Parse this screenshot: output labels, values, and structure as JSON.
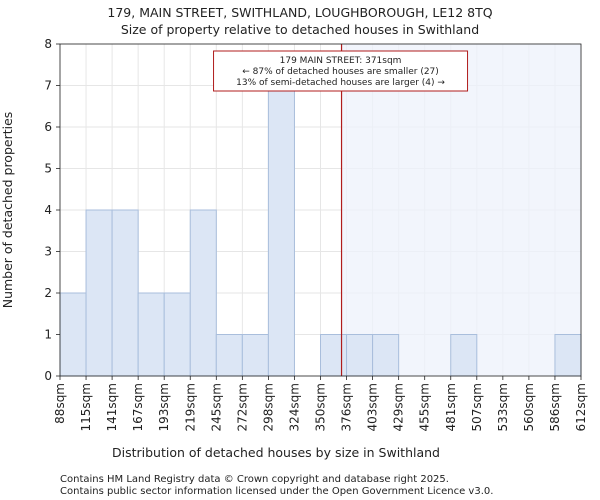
{
  "chart_data": {
    "type": "bar",
    "title": "179, MAIN STREET, SWITHLAND, LOUGHBOROUGH, LE12 8TQ",
    "subtitle": "Size of property relative to detached houses in Swithland",
    "xlabel": "Distribution of detached houses by size in Swithland",
    "ylabel": "Number of detached properties",
    "bin_edges": [
      88,
      115,
      141,
      167,
      193,
      219,
      245,
      272,
      298,
      324,
      350,
      376,
      403,
      429,
      455,
      481,
      507,
      533,
      560,
      586,
      612
    ],
    "tick_labels": [
      "88sqm",
      "115sqm",
      "141sqm",
      "167sqm",
      "193sqm",
      "219sqm",
      "245sqm",
      "272sqm",
      "298sqm",
      "324sqm",
      "350sqm",
      "376sqm",
      "403sqm",
      "429sqm",
      "455sqm",
      "481sqm",
      "507sqm",
      "533sqm",
      "560sqm",
      "586sqm",
      "612sqm"
    ],
    "values": [
      2,
      4,
      4,
      2,
      2,
      4,
      1,
      1,
      7,
      0,
      1,
      1,
      1,
      0,
      0,
      1,
      0,
      0,
      0,
      1
    ],
    "ylim": [
      0,
      8
    ],
    "yticks": [
      0,
      1,
      2,
      3,
      4,
      5,
      6,
      7,
      8
    ],
    "property_size": 371,
    "annotation": [
      "179 MAIN STREET: 371sqm",
      "← 87% of detached houses are smaller (27)",
      "13% of semi-detached houses are larger (4) →"
    ],
    "colors": {
      "bar_fill": "#dce6f5",
      "bar_edge": "#a9bedc",
      "highlight_fill": "#eef2fb",
      "marker_line": "#b01c1c",
      "grid": "#e6e6e6"
    }
  },
  "footer": {
    "line1": "Contains HM Land Registry data © Crown copyright and database right 2025.",
    "line2": "Contains public sector information licensed under the Open Government Licence v3.0."
  }
}
